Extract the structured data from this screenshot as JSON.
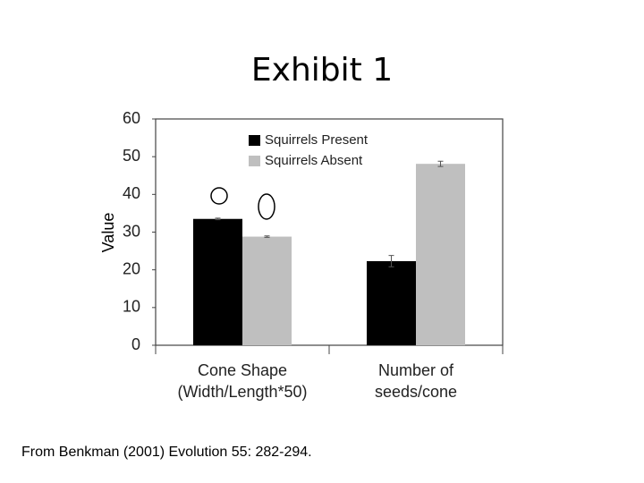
{
  "chart_data": {
    "type": "bar",
    "title": "Exhibit 1",
    "y_label": "Value",
    "categories": [
      "Cone Shape\n(Width/Length*50)",
      "Number of\nseeds/cone"
    ],
    "series": [
      {
        "name": "Squirrels Present",
        "color": "#000000",
        "values": [
          33.5,
          22.3
        ],
        "errors": [
          0.2,
          1.5
        ]
      },
      {
        "name": "Squirrels Absent",
        "color": "#bfbfbf",
        "values": [
          28.8,
          48.1
        ],
        "errors": [
          0.2,
          0.7
        ]
      }
    ],
    "ylim": [
      0,
      60
    ],
    "yticks": [
      0,
      10,
      20,
      30,
      40,
      50,
      60
    ],
    "legend": "top",
    "caption": "From Benkman (2001) Evolution 55: 282-294."
  }
}
